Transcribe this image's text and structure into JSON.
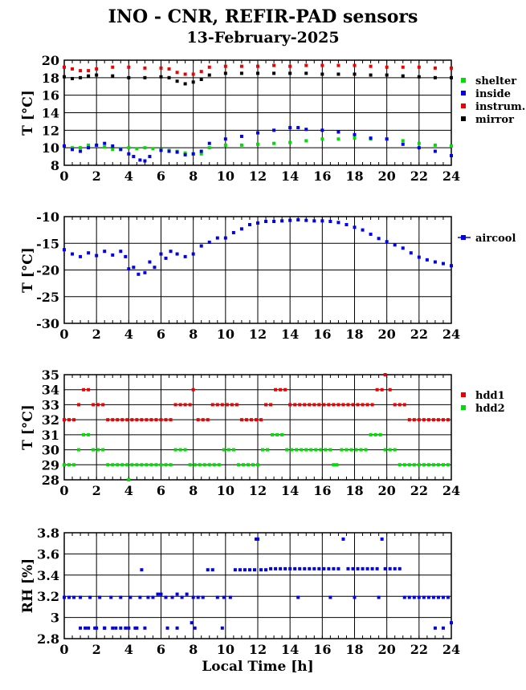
{
  "title": "INO - CNR, REFIR-PAD sensors",
  "date": "13-February-2025",
  "xlabel": "Local Time [h]",
  "chart_data": [
    {
      "type": "scatter",
      "ylabel": "T [°C]",
      "xlim": [
        0,
        24
      ],
      "ylim": [
        8,
        20
      ],
      "xticks": [
        0,
        2,
        4,
        6,
        8,
        10,
        12,
        14,
        16,
        18,
        20,
        22,
        24
      ],
      "yticks": [
        8,
        10,
        12,
        14,
        16,
        18,
        20
      ],
      "grid": true,
      "legend_position": "right",
      "series": [
        {
          "name": "shelter",
          "color": "#00dd00",
          "x": [
            0,
            0.5,
            1,
            1.5,
            2,
            2.5,
            3,
            3.5,
            4,
            4.5,
            5,
            5.5,
            6,
            6.5,
            7,
            7.5,
            8,
            8.5,
            9,
            10,
            11,
            12,
            13,
            14,
            15,
            16,
            17,
            18,
            19,
            20,
            21,
            22,
            23,
            24
          ],
          "y": [
            10.2,
            10.0,
            10.0,
            10.3,
            10.2,
            10.1,
            9.8,
            9.9,
            10.0,
            9.9,
            10.0,
            9.9,
            9.8,
            9.7,
            9.6,
            9.4,
            9.3,
            9.3,
            10.0,
            10.3,
            10.3,
            10.4,
            10.5,
            10.6,
            10.8,
            11.0,
            11.0,
            11.1,
            11.0,
            11.0,
            10.8,
            10.5,
            10.3,
            10.2
          ]
        },
        {
          "name": "inside",
          "color": "#0000ee",
          "x": [
            0,
            0.5,
            1,
            1.5,
            2,
            2.5,
            3,
            3.5,
            4,
            4.3,
            4.7,
            5,
            5.3,
            6,
            6.5,
            7,
            7.5,
            8,
            8.5,
            9,
            10,
            11,
            12,
            13,
            14,
            14.5,
            15,
            16,
            17,
            18,
            19,
            20,
            21,
            22,
            23,
            24
          ],
          "y": [
            10.2,
            9.8,
            9.6,
            10.0,
            10.3,
            10.5,
            10.2,
            9.8,
            9.3,
            9.0,
            8.6,
            8.5,
            9.0,
            9.7,
            9.6,
            9.5,
            9.2,
            9.3,
            9.6,
            10.5,
            11.0,
            11.3,
            11.7,
            12.0,
            12.3,
            12.3,
            12.1,
            12.0,
            11.8,
            11.5,
            11.1,
            11.0,
            10.4,
            10.0,
            9.6,
            9.1
          ]
        },
        {
          "name": "instrum.",
          "color": "#ee0000",
          "x": [
            0,
            0.5,
            1,
            1.5,
            2,
            3,
            4,
            5,
            6,
            6.5,
            7,
            7.5,
            8,
            8.5,
            9,
            10,
            11,
            12,
            13,
            14,
            15,
            16,
            17,
            18,
            19,
            20,
            21,
            22,
            23,
            24
          ],
          "y": [
            19.2,
            19.0,
            18.8,
            18.8,
            19.0,
            19.2,
            19.2,
            19.1,
            19.1,
            19.0,
            18.6,
            18.4,
            18.4,
            18.7,
            19.2,
            19.3,
            19.3,
            19.3,
            19.4,
            19.3,
            19.4,
            19.4,
            19.4,
            19.4,
            19.3,
            19.2,
            19.2,
            19.2,
            19.1,
            19.1
          ]
        },
        {
          "name": "mirror",
          "color": "#000000",
          "x": [
            0,
            0.5,
            1,
            1.5,
            2,
            3,
            4,
            5,
            6,
            6.5,
            7,
            7.5,
            8,
            8.5,
            9,
            10,
            11,
            12,
            13,
            14,
            15,
            16,
            17,
            18,
            19,
            20,
            21,
            22,
            23,
            24
          ],
          "y": [
            18.1,
            17.9,
            18.0,
            18.2,
            18.3,
            18.2,
            18.0,
            18.0,
            18.1,
            18.0,
            17.6,
            17.3,
            17.5,
            17.8,
            18.3,
            18.5,
            18.5,
            18.5,
            18.5,
            18.5,
            18.5,
            18.4,
            18.4,
            18.4,
            18.3,
            18.3,
            18.2,
            18.1,
            18.0,
            18.0
          ]
        }
      ]
    },
    {
      "type": "scatter",
      "ylabel": "T [°C]",
      "xlim": [
        0,
        24
      ],
      "ylim": [
        -30,
        -10
      ],
      "xticks": [
        0,
        2,
        4,
        6,
        8,
        10,
        12,
        14,
        16,
        18,
        20,
        22,
        24
      ],
      "yticks": [
        -30,
        -25,
        -20,
        -15,
        -10
      ],
      "grid": true,
      "legend_position": "right",
      "series": [
        {
          "name": "aircool",
          "color": "#0000ee",
          "x": [
            0,
            0.5,
            1,
            1.5,
            2,
            2.5,
            3,
            3.5,
            3.8,
            4,
            4.3,
            4.6,
            5,
            5.3,
            5.6,
            6,
            6.3,
            6.6,
            7,
            7.5,
            8,
            8.5,
            9,
            9.5,
            10,
            10.5,
            11,
            11.5,
            12,
            12.5,
            13,
            13.5,
            14,
            14.5,
            15,
            15.5,
            16,
            16.5,
            17,
            17.5,
            18,
            18.5,
            19,
            19.5,
            20,
            20.5,
            21,
            21.5,
            22,
            22.5,
            23,
            23.5,
            24
          ],
          "y": [
            -16.2,
            -17.0,
            -17.5,
            -16.8,
            -17.3,
            -16.5,
            -17.2,
            -16.5,
            -17.5,
            -19.8,
            -19.5,
            -20.8,
            -20.5,
            -18.5,
            -19.5,
            -17.0,
            -17.8,
            -16.5,
            -17.0,
            -17.5,
            -17.0,
            -15.5,
            -14.8,
            -14.0,
            -14.0,
            -13.0,
            -12.3,
            -11.5,
            -11.2,
            -10.9,
            -10.9,
            -10.8,
            -10.7,
            -10.6,
            -10.7,
            -10.8,
            -10.8,
            -10.9,
            -11.1,
            -11.5,
            -12.0,
            -12.5,
            -13.3,
            -14.1,
            -14.7,
            -15.3,
            -15.9,
            -16.8,
            -17.6,
            -18.1,
            -18.5,
            -18.8,
            -19.2
          ]
        }
      ]
    },
    {
      "type": "scatter",
      "ylabel": "T [°C]",
      "xlim": [
        0,
        24
      ],
      "ylim": [
        28,
        35
      ],
      "xticks": [
        0,
        2,
        4,
        6,
        8,
        10,
        12,
        14,
        16,
        18,
        20,
        22,
        24
      ],
      "yticks": [
        28,
        29,
        30,
        31,
        32,
        33,
        34,
        35
      ],
      "grid": true,
      "legend_position": "right",
      "series": [
        {
          "name": "hdd1",
          "color": "#ee0000",
          "x": [
            0,
            0.3,
            0.6,
            0.9,
            1.2,
            1.5,
            1.8,
            2.1,
            2.4,
            2.7,
            3.0,
            3.3,
            3.6,
            3.9,
            4.2,
            4.5,
            4.8,
            5.1,
            5.4,
            5.7,
            6.0,
            6.3,
            6.6,
            6.9,
            7.2,
            7.5,
            7.8,
            8.0,
            8.3,
            8.6,
            8.9,
            9.2,
            9.5,
            9.8,
            10.1,
            10.4,
            10.7,
            11.0,
            11.3,
            11.6,
            11.9,
            12.2,
            12.5,
            12.8,
            13.1,
            13.4,
            13.7,
            14.0,
            14.3,
            14.6,
            14.9,
            15.2,
            15.5,
            15.8,
            16.1,
            16.4,
            16.7,
            17.0,
            17.3,
            17.6,
            17.9,
            18.2,
            18.5,
            18.8,
            19.1,
            19.4,
            19.7,
            19.9,
            20.2,
            20.5,
            20.8,
            21.1,
            21.4,
            21.7,
            22.0,
            22.3,
            22.6,
            22.9,
            23.2,
            23.5,
            23.8
          ],
          "y": [
            32,
            32,
            32,
            33,
            34,
            34,
            33,
            33,
            33,
            32,
            32,
            32,
            32,
            32,
            32,
            32,
            32,
            32,
            32,
            32,
            32,
            32,
            32,
            33,
            33,
            33,
            33,
            34,
            32,
            32,
            32,
            33,
            33,
            33,
            33,
            33,
            33,
            32,
            32,
            32,
            32,
            32,
            33,
            33,
            34,
            34,
            34,
            33,
            33,
            33,
            33,
            33,
            33,
            33,
            33,
            33,
            33,
            33,
            33,
            33,
            33,
            33,
            33,
            33,
            33,
            34,
            34,
            35,
            34,
            33,
            33,
            33,
            32,
            32,
            32,
            32,
            32,
            32,
            32,
            32,
            32
          ]
        },
        {
          "name": "hdd2",
          "color": "#00dd00",
          "x": [
            0,
            0.3,
            0.6,
            0.9,
            1.2,
            1.5,
            1.8,
            2.1,
            2.4,
            2.7,
            3.0,
            3.3,
            3.6,
            3.9,
            4.0,
            4.2,
            4.5,
            4.8,
            5.1,
            5.4,
            5.7,
            6.0,
            6.3,
            6.6,
            6.9,
            7.2,
            7.5,
            7.8,
            8.1,
            8.4,
            8.7,
            9.0,
            9.3,
            9.6,
            9.9,
            10.2,
            10.5,
            10.8,
            11.1,
            11.4,
            11.7,
            12.0,
            12.3,
            12.6,
            12.9,
            13.2,
            13.5,
            13.8,
            14.1,
            14.4,
            14.7,
            15.0,
            15.3,
            15.6,
            15.9,
            16.2,
            16.5,
            16.7,
            16.9,
            17.2,
            17.5,
            17.8,
            18.1,
            18.4,
            18.7,
            19.0,
            19.3,
            19.6,
            19.9,
            20.2,
            20.5,
            20.8,
            21.1,
            21.4,
            21.7,
            22.0,
            22.3,
            22.6,
            22.9,
            23.2,
            23.5,
            23.8
          ],
          "y": [
            29,
            29,
            29,
            30,
            31,
            31,
            30,
            30,
            30,
            29,
            29,
            29,
            29,
            29,
            28,
            29,
            29,
            29,
            29,
            29,
            29,
            29,
            29,
            29,
            30,
            30,
            30,
            29,
            29,
            29,
            29,
            29,
            29,
            29,
            30,
            30,
            30,
            29,
            29,
            29,
            29,
            29,
            30,
            30,
            31,
            31,
            31,
            30,
            30,
            30,
            30,
            30,
            30,
            30,
            30,
            30,
            30,
            29,
            29,
            30,
            30,
            30,
            30,
            30,
            30,
            31,
            31,
            31,
            30,
            30,
            30,
            29,
            29,
            29,
            29,
            29,
            29,
            29,
            29,
            29,
            29,
            29
          ]
        }
      ]
    },
    {
      "type": "scatter",
      "ylabel": "RH [%]",
      "xlim": [
        0,
        24
      ],
      "ylim": [
        2.8,
        3.8
      ],
      "xticks": [
        0,
        2,
        4,
        6,
        8,
        10,
        12,
        14,
        16,
        18,
        20,
        22,
        24
      ],
      "yticks": [
        2.8,
        3.0,
        3.2,
        3.4,
        3.6,
        3.8
      ],
      "ytick_labels": [
        "2.8",
        "3",
        "3.2",
        "3.4",
        "3.6",
        "3.8"
      ],
      "grid": true,
      "series": [
        {
          "name": "",
          "color": "#0000ee",
          "x": [
            0,
            0.3,
            0.6,
            1.0,
            1.3,
            1.6,
            1.9,
            2.2,
            2.5,
            2.9,
            3.2,
            3.5,
            3.8,
            4.1,
            4.4,
            4.7,
            4.8,
            5.2,
            5.5,
            5.8,
            6.0,
            6.3,
            6.7,
            7.0,
            7.3,
            7.6,
            7.9,
            8.0,
            8.1,
            8.3,
            8.6,
            8.9,
            9.2,
            9.5,
            9.9,
            10.3,
            10.6,
            10.9,
            11.2,
            11.5,
            11.8,
            11.9,
            12.2,
            12.5,
            12.8,
            13.1,
            13.4,
            13.7,
            14.0,
            14.3,
            14.6,
            14.9,
            15.2,
            15.5,
            15.8,
            16.1,
            16.4,
            16.7,
            17.0,
            17.3,
            17.6,
            17.9,
            18.2,
            18.5,
            18.8,
            19.1,
            19.4,
            19.7,
            19.9,
            20.2,
            20.5,
            20.8,
            21.1,
            21.4,
            21.7,
            22.0,
            22.3,
            22.6,
            22.9,
            23.2,
            23.5,
            23.8,
            24.0,
            1.0,
            1.5,
            2.0,
            2.5,
            3.0,
            3.5,
            4.0,
            4.5,
            5.0,
            6.4,
            7.0,
            9.8,
            12.0,
            14.5,
            16.5,
            18.0,
            19.5,
            23.0,
            23.5
          ],
          "y": [
            3.19,
            3.19,
            3.19,
            3.19,
            2.9,
            3.19,
            2.9,
            3.19,
            2.9,
            3.19,
            2.9,
            3.19,
            2.9,
            3.19,
            2.9,
            3.19,
            3.45,
            3.19,
            3.19,
            3.22,
            3.22,
            3.19,
            3.19,
            3.22,
            3.19,
            3.22,
            2.95,
            3.19,
            2.9,
            3.19,
            3.19,
            3.45,
            3.45,
            3.19,
            3.19,
            3.19,
            3.45,
            3.45,
            3.45,
            3.45,
            3.45,
            3.74,
            3.45,
            3.45,
            3.46,
            3.46,
            3.46,
            3.46,
            3.46,
            3.46,
            3.46,
            3.46,
            3.46,
            3.46,
            3.46,
            3.46,
            3.46,
            3.46,
            3.46,
            3.74,
            3.46,
            3.46,
            3.46,
            3.46,
            3.46,
            3.46,
            3.46,
            3.74,
            3.46,
            3.46,
            3.46,
            3.46,
            3.19,
            3.19,
            3.19,
            3.19,
            3.19,
            3.19,
            3.19,
            3.19,
            3.19,
            3.19,
            2.95,
            2.9,
            2.9,
            2.9,
            2.9,
            2.9,
            2.9,
            2.9,
            2.9,
            2.9,
            2.9,
            2.9,
            2.9,
            3.74,
            3.19,
            3.19,
            3.19,
            3.19,
            2.9,
            2.9
          ]
        }
      ]
    }
  ]
}
